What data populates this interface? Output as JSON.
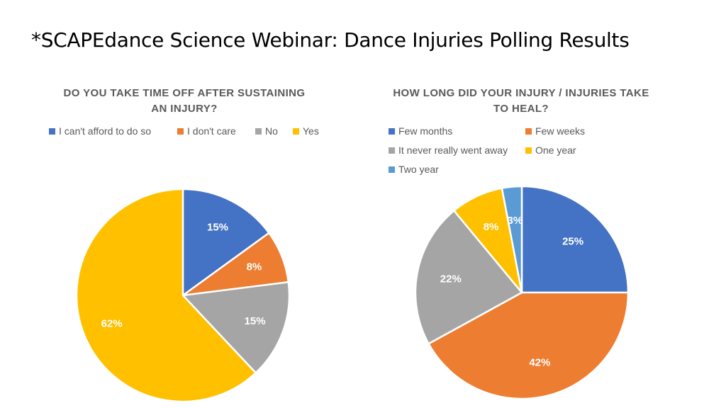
{
  "slide": {
    "title": "*SCAPEdance Science Webinar: Dance Injuries Polling Results"
  },
  "chart_data": [
    {
      "type": "pie",
      "title_lines": [
        "DO YOU TAKE TIME OFF AFTER SUSTAINING",
        "AN INJURY?"
      ],
      "legend_position": "top",
      "slices": [
        {
          "name": "I can't afford to do so",
          "value": 15,
          "label": "15%",
          "color": "#4472C4"
        },
        {
          "name": "I don't care",
          "value": 8,
          "label": "8%",
          "color": "#ED7D31"
        },
        {
          "name": "No",
          "value": 15,
          "label": "15%",
          "color": "#A5A5A5"
        },
        {
          "name": "Yes",
          "value": 62,
          "label": "62%",
          "color": "#FFC000"
        }
      ]
    },
    {
      "type": "pie",
      "title_lines": [
        "HOW LONG DID YOUR INJURY / INJURIES TAKE",
        "TO HEAL?"
      ],
      "legend_position": "top",
      "slices": [
        {
          "name": "Few months",
          "value": 25,
          "label": "25%",
          "color": "#4472C4"
        },
        {
          "name": "Few weeks",
          "value": 42,
          "label": "42%",
          "color": "#ED7D31"
        },
        {
          "name": "It never really went away",
          "value": 22,
          "label": "22%",
          "color": "#A5A5A5"
        },
        {
          "name": "One year",
          "value": 8,
          "label": "8%",
          "color": "#FFC000"
        },
        {
          "name": "Two year",
          "value": 3,
          "label": "3%",
          "color": "#5B9BD5"
        }
      ]
    }
  ]
}
